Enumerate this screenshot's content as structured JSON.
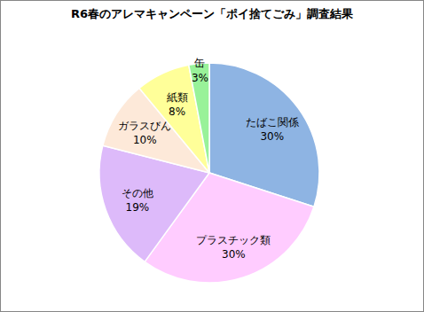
{
  "chart_data": {
    "type": "pie",
    "title": "R6春のアレマキャンペーン「ポイ捨てごみ」調査結果",
    "categories": [
      "たばこ関係",
      "プラスチック類",
      "その他",
      "ガラスびん",
      "紙類",
      "缶"
    ],
    "values": [
      30,
      30,
      19,
      10,
      8,
      3
    ],
    "value_labels": [
      "30%",
      "30%",
      "19%",
      "10%",
      "8%",
      "3%"
    ],
    "colors": [
      "#8EB4E3",
      "#FFCCFF",
      "#DDBAFA",
      "#FDE9D9",
      "#FFFF99",
      "#99F299"
    ],
    "data_labels": true
  }
}
